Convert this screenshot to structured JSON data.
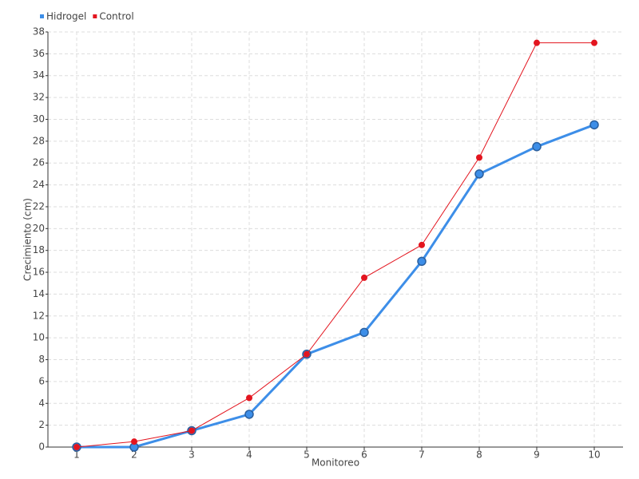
{
  "chart_data": {
    "type": "line",
    "x_label": "Monitoreo",
    "y_label": "Crecimiento (cm)",
    "categories": [
      "1",
      "2",
      "3",
      "4",
      "5",
      "6",
      "7",
      "8",
      "9",
      "10"
    ],
    "series": [
      {
        "name": "Hidrogel",
        "color": "#3d8ee8",
        "values": [
          0,
          0,
          1.5,
          3,
          8.5,
          10.5,
          17,
          25,
          27.5,
          29.5
        ]
      },
      {
        "name": "Control",
        "color": "#e3151f",
        "values": [
          0,
          0.5,
          1.5,
          4.5,
          8.5,
          15.5,
          18.5,
          26.5,
          37,
          37
        ]
      }
    ],
    "ylim": [
      0,
      38
    ],
    "yticks": [
      0,
      2,
      4,
      6,
      8,
      10,
      12,
      14,
      16,
      18,
      20,
      22,
      24,
      26,
      28,
      30,
      32,
      34,
      36,
      38
    ],
    "grid": true,
    "legend": "top-left"
  }
}
